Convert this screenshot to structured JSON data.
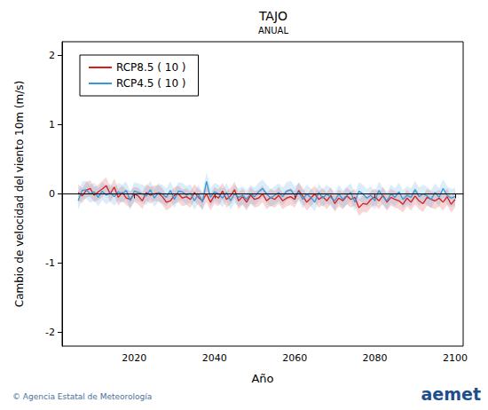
{
  "chart_data": {
    "type": "line",
    "title": "TAJO",
    "subtitle": "ANUAL",
    "x_label": "Año",
    "y_label": "Cambio de velocidad del viento 10m (m/s)",
    "source": "© Agencia Estatal de Meteorología",
    "logo": "aemet",
    "legend": "upper left",
    "grid": false,
    "reference_line": 0,
    "xlim": [
      2002,
      2102
    ],
    "xticks": [
      2020,
      2040,
      2060,
      2080,
      2100
    ],
    "ylim": [
      -2.2,
      2.2
    ],
    "yticks": [
      -2,
      -1,
      0,
      1,
      2
    ],
    "x": [
      2006,
      2007,
      2008,
      2009,
      2010,
      2011,
      2012,
      2013,
      2014,
      2015,
      2016,
      2017,
      2018,
      2019,
      2020,
      2021,
      2022,
      2023,
      2024,
      2025,
      2026,
      2027,
      2028,
      2029,
      2030,
      2031,
      2032,
      2033,
      2034,
      2035,
      2036,
      2037,
      2038,
      2039,
      2040,
      2041,
      2042,
      2043,
      2044,
      2045,
      2046,
      2047,
      2048,
      2049,
      2050,
      2051,
      2052,
      2053,
      2054,
      2055,
      2056,
      2057,
      2058,
      2059,
      2060,
      2061,
      2062,
      2063,
      2064,
      2065,
      2066,
      2067,
      2068,
      2069,
      2070,
      2071,
      2072,
      2073,
      2074,
      2075,
      2076,
      2077,
      2078,
      2079,
      2080,
      2081,
      2082,
      2083,
      2084,
      2085,
      2086,
      2087,
      2088,
      2089,
      2090,
      2091,
      2092,
      2093,
      2094,
      2095,
      2096,
      2097,
      2098,
      2099,
      2100
    ],
    "series": [
      {
        "name": "RCP8.5 ( 10 )",
        "color": "#dd1c1c",
        "values": [
          0.02,
          -0.03,
          0.05,
          0.08,
          -0.02,
          0.03,
          0.07,
          0.12,
          0.0,
          0.1,
          -0.05,
          0.02,
          -0.06,
          -0.08,
          0.0,
          -0.03,
          -0.1,
          0.02,
          -0.02,
          0.0,
          0.01,
          -0.04,
          -0.12,
          -0.1,
          -0.02,
          0.0,
          -0.06,
          -0.04,
          -0.08,
          0.02,
          -0.05,
          -0.1,
          0.0,
          -0.12,
          -0.02,
          -0.06,
          0.04,
          -0.08,
          -0.03,
          0.06,
          -0.1,
          -0.04,
          -0.12,
          -0.02,
          -0.08,
          -0.06,
          0.0,
          -0.1,
          -0.05,
          -0.08,
          -0.02,
          -0.1,
          -0.06,
          -0.04,
          -0.08,
          0.05,
          -0.03,
          -0.12,
          -0.06,
          0.0,
          -0.08,
          -0.04,
          -0.1,
          -0.02,
          -0.14,
          -0.06,
          -0.1,
          -0.03,
          -0.08,
          -0.05,
          -0.2,
          -0.14,
          -0.15,
          -0.08,
          -0.04,
          -0.1,
          -0.02,
          -0.12,
          -0.05,
          -0.08,
          -0.1,
          -0.15,
          -0.06,
          -0.12,
          -0.03,
          -0.1,
          -0.14,
          -0.05,
          -0.08,
          -0.1,
          -0.06,
          -0.12,
          -0.04,
          -0.15,
          -0.08
        ],
        "lower": [
          -0.1,
          -0.13,
          -0.05,
          -0.04,
          -0.12,
          -0.09,
          -0.05,
          0.02,
          -0.12,
          -0.02,
          -0.17,
          -0.1,
          -0.16,
          -0.2,
          -0.12,
          -0.15,
          -0.22,
          -0.1,
          -0.14,
          -0.1,
          -0.11,
          -0.16,
          -0.24,
          -0.2,
          -0.14,
          -0.12,
          -0.18,
          -0.16,
          -0.2,
          -0.1,
          -0.17,
          -0.22,
          -0.12,
          -0.24,
          -0.14,
          -0.18,
          -0.08,
          -0.2,
          -0.15,
          -0.06,
          -0.22,
          -0.16,
          -0.24,
          -0.14,
          -0.2,
          -0.18,
          -0.12,
          -0.22,
          -0.17,
          -0.2,
          -0.14,
          -0.22,
          -0.18,
          -0.16,
          -0.2,
          -0.07,
          -0.15,
          -0.24,
          -0.18,
          -0.12,
          -0.2,
          -0.16,
          -0.22,
          -0.14,
          -0.26,
          -0.18,
          -0.22,
          -0.15,
          -0.2,
          -0.17,
          -0.32,
          -0.26,
          -0.27,
          -0.2,
          -0.16,
          -0.22,
          -0.14,
          -0.24,
          -0.17,
          -0.2,
          -0.22,
          -0.27,
          -0.18,
          -0.24,
          -0.15,
          -0.22,
          -0.26,
          -0.17,
          -0.2,
          -0.22,
          -0.18,
          -0.24,
          -0.16,
          -0.27,
          -0.2
        ],
        "upper": [
          0.14,
          0.08,
          0.17,
          0.2,
          0.1,
          0.13,
          0.19,
          0.24,
          0.1,
          0.22,
          0.07,
          0.12,
          0.06,
          0.04,
          0.1,
          0.09,
          0.02,
          0.14,
          0.1,
          0.12,
          0.13,
          0.08,
          0.0,
          0.02,
          0.1,
          0.12,
          0.06,
          0.08,
          0.04,
          0.14,
          0.07,
          0.02,
          0.12,
          0.0,
          0.1,
          0.06,
          0.16,
          0.04,
          0.09,
          0.18,
          0.02,
          0.08,
          0.0,
          0.1,
          0.04,
          0.06,
          0.12,
          0.02,
          0.07,
          0.04,
          0.1,
          0.02,
          0.06,
          0.08,
          0.04,
          0.17,
          0.09,
          0.0,
          0.06,
          0.12,
          0.04,
          0.08,
          0.02,
          0.1,
          -0.02,
          0.06,
          0.02,
          0.09,
          0.04,
          0.07,
          -0.08,
          -0.02,
          -0.03,
          0.04,
          0.08,
          0.02,
          0.1,
          0.0,
          0.07,
          0.04,
          0.02,
          -0.03,
          0.06,
          0.0,
          0.09,
          0.02,
          -0.02,
          0.07,
          0.04,
          0.02,
          0.06,
          0.0,
          0.08,
          -0.03,
          0.04
        ]
      },
      {
        "name": "RCP4.5 ( 10 )",
        "color": "#3399dd",
        "values": [
          -0.1,
          0.05,
          0.06,
          0.0,
          0.03,
          -0.05,
          0.04,
          -0.02,
          0.02,
          -0.04,
          0.03,
          0.0,
          0.05,
          -0.1,
          0.04,
          0.02,
          0.0,
          -0.03,
          0.06,
          -0.06,
          0.02,
          0.0,
          -0.05,
          0.05,
          -0.08,
          0.04,
          0.03,
          -0.02,
          0.01,
          -0.1,
          0.0,
          -0.12,
          0.18,
          -0.05,
          0.03,
          0.0,
          -0.06,
          0.02,
          -0.1,
          0.0,
          -0.05,
          -0.02,
          -0.08,
          0.0,
          -0.04,
          0.03,
          0.08,
          0.0,
          -0.06,
          -0.02,
          0.02,
          -0.04,
          0.04,
          0.06,
          -0.02,
          0.03,
          -0.08,
          0.0,
          -0.05,
          -0.12,
          0.02,
          -0.06,
          0.0,
          -0.05,
          -0.1,
          0.0,
          -0.08,
          -0.02,
          0.02,
          -0.12,
          0.04,
          0.0,
          -0.06,
          -0.02,
          -0.1,
          0.05,
          -0.04,
          -0.1,
          0.0,
          -0.05,
          0.03,
          -0.08,
          -0.02,
          -0.05,
          0.06,
          -0.04,
          0.0,
          -0.03,
          -0.08,
          0.02,
          -0.05,
          0.08,
          -0.02,
          -0.06,
          -0.04
        ],
        "lower": [
          -0.23,
          -0.08,
          -0.07,
          -0.13,
          -0.1,
          -0.18,
          -0.09,
          -0.15,
          -0.11,
          -0.17,
          -0.1,
          -0.13,
          -0.08,
          -0.23,
          -0.09,
          -0.11,
          -0.13,
          -0.16,
          -0.07,
          -0.19,
          -0.11,
          -0.13,
          -0.18,
          -0.08,
          -0.21,
          -0.09,
          -0.1,
          -0.15,
          -0.12,
          -0.23,
          -0.13,
          -0.25,
          0.05,
          -0.18,
          -0.1,
          -0.13,
          -0.19,
          -0.11,
          -0.23,
          -0.13,
          -0.18,
          -0.15,
          -0.21,
          -0.13,
          -0.17,
          -0.1,
          -0.05,
          -0.13,
          -0.19,
          -0.15,
          -0.11,
          -0.17,
          -0.09,
          -0.07,
          -0.15,
          -0.1,
          -0.21,
          -0.13,
          -0.18,
          -0.25,
          -0.11,
          -0.19,
          -0.13,
          -0.18,
          -0.23,
          -0.13,
          -0.21,
          -0.15,
          -0.11,
          -0.25,
          -0.09,
          -0.13,
          -0.19,
          -0.15,
          -0.23,
          -0.08,
          -0.17,
          -0.23,
          -0.13,
          -0.18,
          -0.1,
          -0.21,
          -0.15,
          -0.18,
          -0.07,
          -0.17,
          -0.13,
          -0.16,
          -0.21,
          -0.11,
          -0.18,
          -0.05,
          -0.15,
          -0.19,
          -0.17
        ],
        "upper": [
          0.03,
          0.18,
          0.19,
          0.13,
          0.16,
          0.08,
          0.17,
          0.11,
          0.15,
          0.09,
          0.16,
          0.13,
          0.18,
          0.03,
          0.17,
          0.15,
          0.13,
          0.1,
          0.19,
          0.07,
          0.15,
          0.13,
          0.08,
          0.18,
          0.05,
          0.17,
          0.16,
          0.11,
          0.14,
          0.03,
          0.13,
          0.01,
          0.31,
          0.08,
          0.16,
          0.13,
          0.07,
          0.15,
          0.03,
          0.13,
          0.08,
          0.11,
          0.05,
          0.13,
          0.09,
          0.16,
          0.21,
          0.13,
          0.07,
          0.11,
          0.15,
          0.09,
          0.17,
          0.19,
          0.11,
          0.16,
          0.05,
          0.13,
          0.08,
          0.01,
          0.15,
          0.07,
          0.13,
          0.08,
          0.03,
          0.13,
          0.05,
          0.11,
          0.15,
          0.01,
          0.17,
          0.13,
          0.07,
          0.11,
          0.03,
          0.18,
          0.09,
          0.03,
          0.13,
          0.08,
          0.16,
          0.05,
          0.11,
          0.08,
          0.19,
          0.09,
          0.13,
          0.1,
          0.05,
          0.15,
          0.08,
          0.21,
          0.11,
          0.07,
          0.09
        ]
      }
    ]
  }
}
